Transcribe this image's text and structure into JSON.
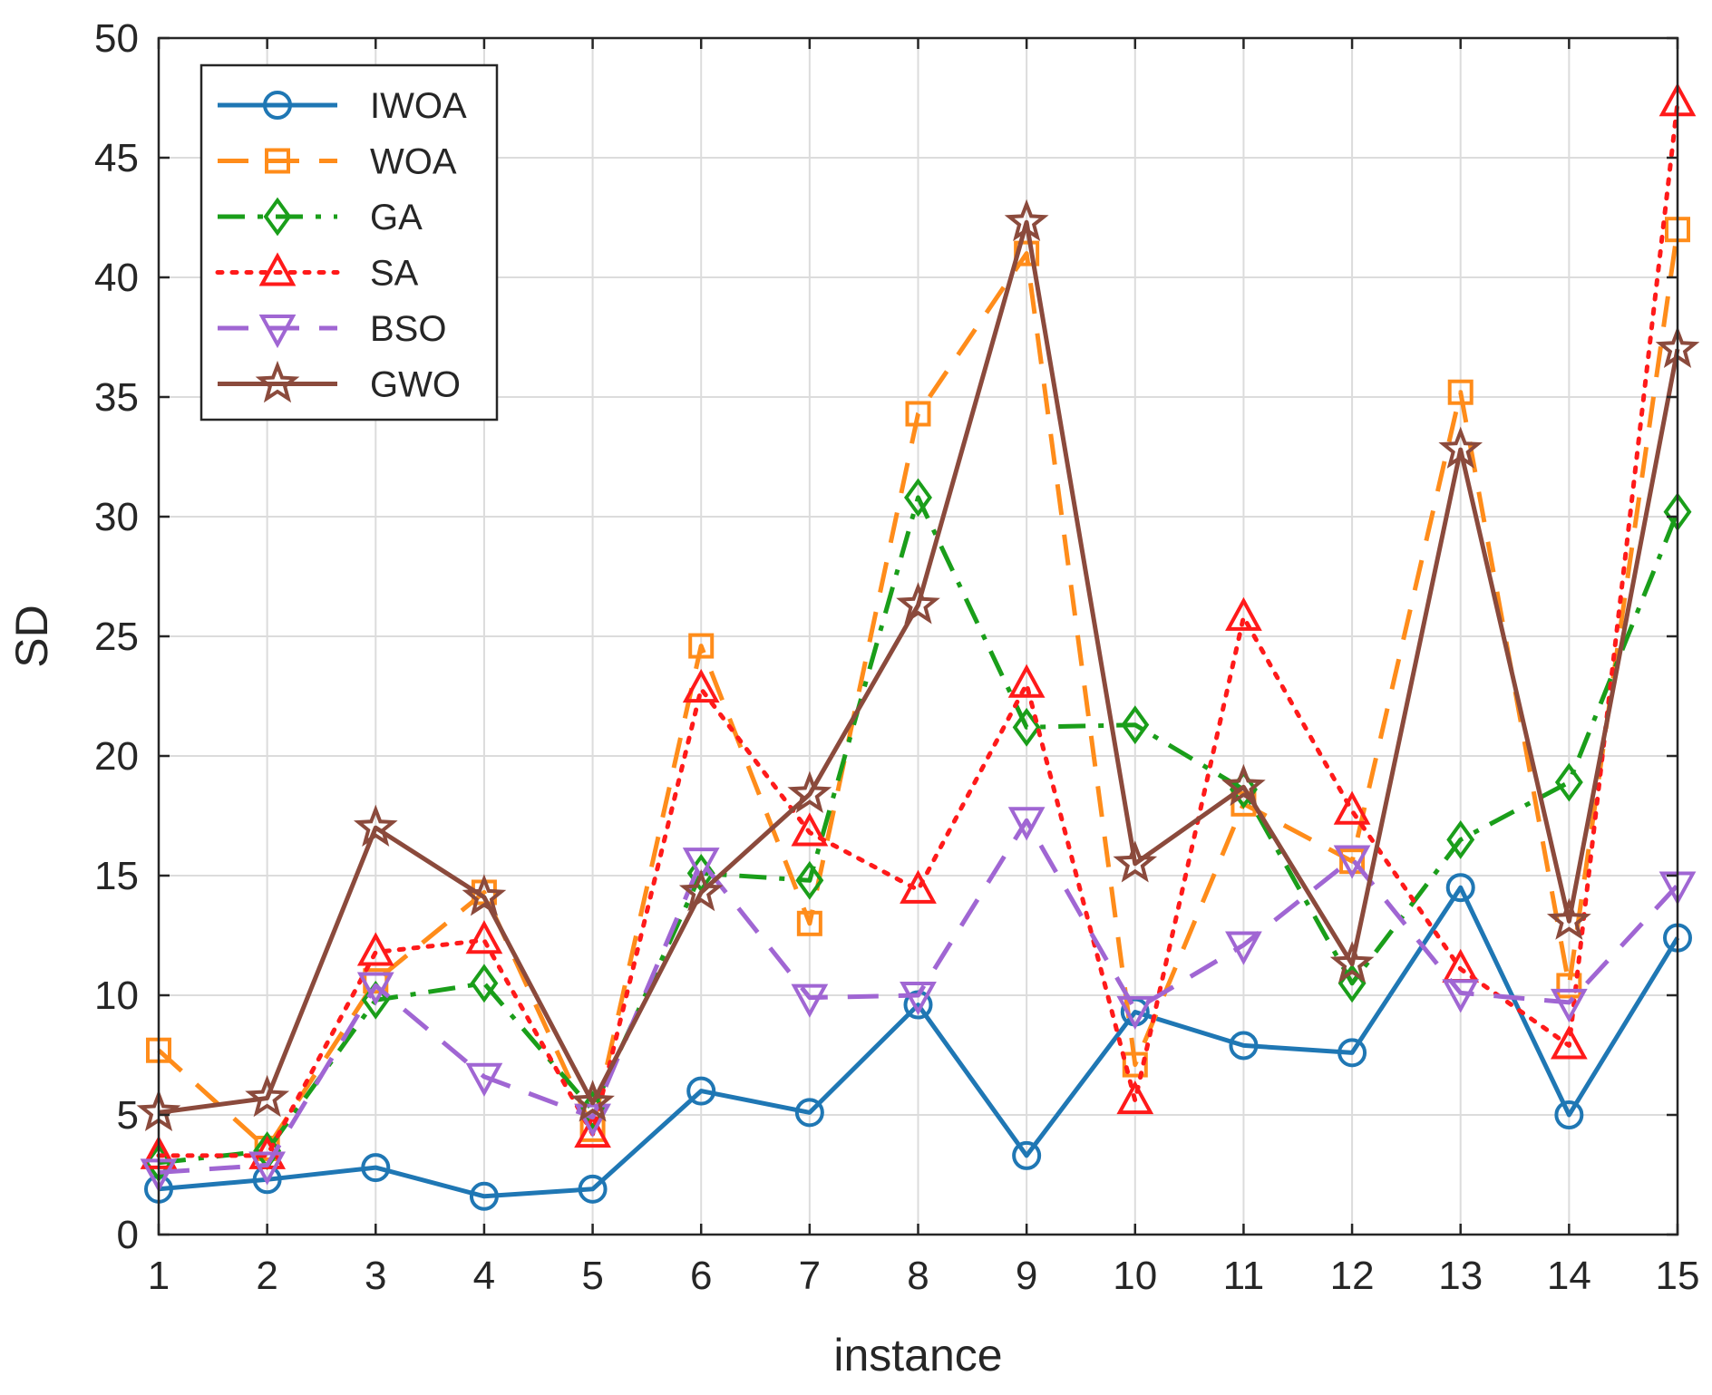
{
  "chart_data": {
    "type": "line",
    "xlabel": "instance",
    "ylabel": "SD",
    "xlim": [
      1,
      15
    ],
    "ylim": [
      0,
      50
    ],
    "xticks": [
      "1",
      "2",
      "3",
      "4",
      "5",
      "6",
      "7",
      "8",
      "9",
      "10",
      "11",
      "12",
      "13",
      "14",
      "15"
    ],
    "yticks": [
      "0",
      "5",
      "10",
      "15",
      "20",
      "25",
      "30",
      "35",
      "40",
      "45",
      "50"
    ],
    "grid": true,
    "legend_position": "top-left",
    "x": [
      1,
      2,
      3,
      4,
      5,
      6,
      7,
      8,
      9,
      10,
      11,
      12,
      13,
      14,
      15
    ],
    "series": [
      {
        "name": "IWOA",
        "color": "#1f77b4",
        "dash": "solid",
        "marker": "circle",
        "values": [
          1.9,
          2.3,
          2.8,
          1.6,
          1.9,
          6.0,
          5.1,
          9.6,
          3.3,
          9.3,
          7.9,
          7.6,
          14.5,
          5.0,
          12.4
        ]
      },
      {
        "name": "WOA",
        "color": "#ff8c1a",
        "dash": "dashed",
        "marker": "square",
        "values": [
          7.7,
          3.6,
          10.6,
          14.3,
          4.4,
          24.6,
          13.0,
          34.3,
          41.0,
          7.1,
          18.0,
          15.6,
          35.2,
          10.4,
          42.0
        ]
      },
      {
        "name": "GA",
        "color": "#1a9e1a",
        "dash": "dashdot",
        "marker": "diamond",
        "values": [
          3.0,
          3.5,
          9.8,
          10.5,
          5.2,
          15.1,
          14.8,
          30.8,
          21.2,
          21.3,
          18.6,
          10.5,
          16.5,
          18.9,
          30.2
        ]
      },
      {
        "name": "SA",
        "color": "#ff1a1a",
        "dash": "dotted",
        "marker": "triangle-up",
        "values": [
          3.3,
          3.3,
          11.8,
          12.3,
          4.2,
          22.8,
          16.8,
          14.4,
          23.0,
          5.6,
          25.8,
          17.7,
          11.1,
          7.9,
          47.3
        ]
      },
      {
        "name": "BSO",
        "color": "#a066d3",
        "dash": "dashed",
        "marker": "triangle-down",
        "values": [
          2.6,
          2.9,
          10.4,
          6.6,
          4.9,
          15.6,
          9.9,
          10.0,
          17.3,
          9.4,
          12.1,
          15.7,
          10.1,
          9.7,
          14.6
        ]
      },
      {
        "name": "GWO",
        "color": "#8b4a3c",
        "dash": "solid",
        "marker": "star",
        "values": [
          5.1,
          5.7,
          17.0,
          14.1,
          5.5,
          14.3,
          18.4,
          26.3,
          42.3,
          15.5,
          18.7,
          11.3,
          32.8,
          13.1,
          37.0
        ]
      }
    ]
  }
}
